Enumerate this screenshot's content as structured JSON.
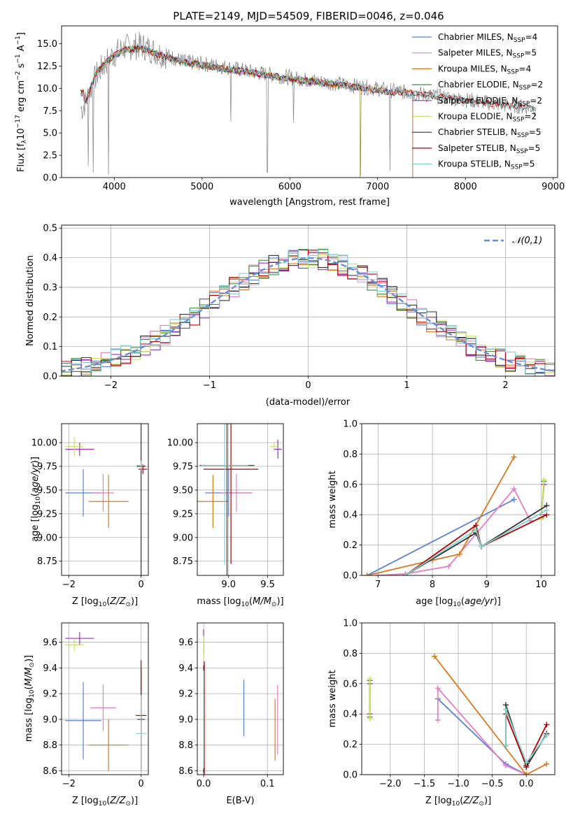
{
  "figure_title": "PLATE=2149, MJD=54509, FIBERID=0046, z=0.046",
  "model_colors": {
    "Chabrier MILES": "#5b7fd6",
    "Salpeter MILES": "#e57fc0",
    "Kroupa MILES": "#d9791f",
    "Chabrier ELODIE": "#3f8f3f",
    "Salpeter ELODIE": "#9b2fbf",
    "Kroupa ELODIE": "#c9e060",
    "Chabrier STELIB": "#333333",
    "Salpeter STELIB": "#b30000",
    "Kroupa STELIB": "#7fd3cf"
  },
  "chart_data": [
    {
      "id": "spectrum",
      "type": "line",
      "xlabel": "wavelength [Angstrom, rest frame]",
      "ylabel": "Flux [f_λ10^-17 erg cm^-2 s^-1 A^-1]",
      "xlim": [
        3400,
        9050
      ],
      "ylim": [
        0,
        17
      ],
      "xticks": [
        4000,
        5000,
        6000,
        7000,
        8000,
        9000
      ],
      "yticks": [
        0.0,
        2.5,
        5.0,
        7.5,
        10.0,
        12.5,
        15.0
      ],
      "legend_position": "upper-right",
      "legend": [
        {
          "base": "Chabrier MILES, N",
          "sub": "SSP",
          "tail": "=4"
        },
        {
          "base": "Salpeter MILES, N",
          "sub": "SSP",
          "tail": "=5"
        },
        {
          "base": "Kroupa MILES, N",
          "sub": "SSP",
          "tail": "=4"
        },
        {
          "base": "Chabrier ELODIE, N",
          "sub": "SSP",
          "tail": "=2"
        },
        {
          "base": "Salpeter ELODIE, N",
          "sub": "SSP",
          "tail": "=2"
        },
        {
          "base": "Kroupa ELODIE, N",
          "sub": "SSP",
          "tail": "=2"
        },
        {
          "base": "Chabrier STELIB, N",
          "sub": "SSP",
          "tail": "=5"
        },
        {
          "base": "Salpeter STELIB, N",
          "sub": "SSP",
          "tail": "=5"
        },
        {
          "base": "Kroupa STELIB, N",
          "sub": "SSP",
          "tail": "=5"
        }
      ],
      "data_continuum": [
        [
          3650,
          8.0
        ],
        [
          3800,
          11.5
        ],
        [
          3950,
          13.5
        ],
        [
          4100,
          14.5
        ],
        [
          4300,
          14.8
        ],
        [
          4500,
          14.0
        ],
        [
          4800,
          13.0
        ],
        [
          5200,
          12.5
        ],
        [
          5600,
          11.8
        ],
        [
          6000,
          11.2
        ],
        [
          6400,
          10.7
        ],
        [
          6800,
          10.2
        ],
        [
          7200,
          9.7
        ],
        [
          7600,
          9.2
        ],
        [
          8000,
          8.7
        ],
        [
          8400,
          8.2
        ],
        [
          8800,
          7.8
        ]
      ],
      "model_continuum": [
        [
          3650,
          8.0
        ],
        [
          3800,
          11.8
        ],
        [
          3950,
          13.3
        ],
        [
          4100,
          14.3
        ],
        [
          4300,
          14.5
        ],
        [
          4500,
          13.8
        ],
        [
          4800,
          12.9
        ],
        [
          5200,
          12.3
        ],
        [
          5600,
          11.7
        ],
        [
          6000,
          11.1
        ],
        [
          6400,
          10.6
        ],
        [
          6800,
          10.1
        ],
        [
          7200,
          9.5
        ]
      ],
      "model_cutoffs": {
        "MILES": 7400,
        "ELODIE": 6800,
        "STELIB": 8800
      }
    },
    {
      "id": "residual-hist",
      "type": "line",
      "xlabel": "(data-model)/error",
      "ylabel": "Normed distribution",
      "xlim": [
        -2.5,
        2.5
      ],
      "ylim": [
        0,
        0.51
      ],
      "xticks": [
        -2,
        -1,
        0,
        1,
        2
      ],
      "yticks": [
        0.0,
        0.1,
        0.2,
        0.3,
        0.4,
        0.5
      ],
      "bin_width": 0.1,
      "legend": "𝒩(0,1)",
      "legend_position": "upper-right",
      "reference_curve": "standard normal density"
    },
    {
      "id": "age-vs-Z",
      "type": "scatter",
      "xlabel": "Z [log10(Z/Z⊙)]",
      "ylabel": "age [log10(age/yr)]",
      "xlim": [
        -2.2,
        0.2
      ],
      "ylim": [
        8.6,
        10.2
      ],
      "xticks": [
        -2,
        0
      ],
      "yticks": [
        8.75,
        9.0,
        9.25,
        9.5,
        9.75,
        10.0
      ],
      "points": [
        {
          "model": "Chabrier MILES",
          "x": -1.6,
          "xerr": 0.5,
          "y": 9.47,
          "yerr": 0.25
        },
        {
          "model": "Salpeter MILES",
          "x": -1.05,
          "xerr": 0.3,
          "y": 9.47,
          "yerr": 0.2
        },
        {
          "model": "Kroupa MILES",
          "x": -0.9,
          "xerr": 0.55,
          "y": 9.38,
          "yerr": 0.28
        },
        {
          "model": "Salpeter ELODIE",
          "x": -1.7,
          "xerr": 0.4,
          "y": 9.93,
          "yerr": 0.07
        },
        {
          "model": "Kroupa ELODIE",
          "x": -1.85,
          "xerr": 0.25,
          "y": 9.96,
          "yerr": 0.1
        },
        {
          "model": "Chabrier STELIB",
          "x": 0.0,
          "xerr": 0.12,
          "y": 9.75,
          "yerr": 1.15
        },
        {
          "model": "Salpeter STELIB",
          "x": 0.05,
          "xerr": 0.12,
          "y": 9.72,
          "yerr": 0.05
        },
        {
          "model": "Kroupa STELIB",
          "x": 0.0,
          "xerr": 0.12,
          "y": 9.76,
          "yerr": 0.05
        }
      ]
    },
    {
      "id": "age-vs-mass",
      "type": "scatter",
      "xlabel": "mass [log10(M/M⊙)]",
      "ylabel": "",
      "xlim": [
        8.6,
        9.7
      ],
      "ylim": [
        8.6,
        10.2
      ],
      "xticks": [
        9.0,
        9.5
      ],
      "yticks": [
        8.75,
        9.0,
        9.25,
        9.5,
        9.75,
        10.0
      ],
      "points": [
        {
          "model": "Chabrier MILES",
          "x": 9.0,
          "xerr": 0.3,
          "y": 9.47,
          "yerr": 0.25
        },
        {
          "model": "Salpeter MILES",
          "x": 9.1,
          "xerr": 0.2,
          "y": 9.47,
          "yerr": 0.2
        },
        {
          "model": "Kroupa MILES",
          "x": 8.8,
          "xerr": 0.2,
          "y": 9.38,
          "yerr": 0.28
        },
        {
          "model": "Salpeter ELODIE",
          "x": 9.63,
          "xerr": 0.05,
          "y": 9.93,
          "yerr": 0.1
        },
        {
          "model": "Kroupa ELODIE",
          "x": 9.58,
          "xerr": 0.05,
          "y": 9.96,
          "yerr": 0.05
        },
        {
          "model": "Chabrier STELIB",
          "x": 8.98,
          "xerr": 0.35,
          "y": 9.76,
          "yerr": 1.3
        },
        {
          "model": "Salpeter STELIB",
          "x": 9.03,
          "xerr": 0.35,
          "y": 9.72,
          "yerr": 1.0
        },
        {
          "model": "Kroupa STELIB",
          "x": 8.95,
          "xerr": 0.3,
          "y": 9.76,
          "yerr": 1.05
        }
      ]
    },
    {
      "id": "weight-vs-age",
      "type": "line",
      "xlabel": "age  [log10(age/yr)]",
      "ylabel": "mass weight",
      "xlim": [
        6.7,
        10.25
      ],
      "ylim": [
        0,
        1.0
      ],
      "xticks": [
        7,
        8,
        9,
        10
      ],
      "yticks": [
        0.0,
        0.2,
        0.4,
        0.6,
        0.8,
        1.0
      ],
      "series": [
        {
          "model": "Chabrier MILES",
          "x": [
            6.8,
            9.5
          ],
          "y": [
            0.0,
            0.5
          ]
        },
        {
          "model": "Salpeter MILES",
          "x": [
            7.0,
            7.5,
            8.3,
            9.5,
            9.8
          ],
          "y": [
            0.0,
            0.01,
            0.06,
            0.57,
            0.36
          ]
        },
        {
          "model": "Kroupa MILES",
          "x": [
            6.8,
            8.0,
            8.5,
            9.5
          ],
          "y": [
            0.0,
            0.1,
            0.14,
            0.78
          ]
        },
        {
          "model": "Chabrier ELODIE",
          "x": [
            10.0,
            10.05
          ],
          "y": [
            0.38,
            0.62
          ]
        },
        {
          "model": "Salpeter ELODIE",
          "x": [
            10.0,
            10.05
          ],
          "y": [
            0.4,
            0.6
          ]
        },
        {
          "model": "Kroupa ELODIE",
          "x": [
            10.0,
            10.05
          ],
          "y": [
            0.37,
            0.63
          ]
        },
        {
          "model": "Chabrier STELIB",
          "x": [
            7.5,
            8.8,
            8.9,
            10.1
          ],
          "y": [
            0.0,
            0.28,
            0.19,
            0.46
          ]
        },
        {
          "model": "Salpeter STELIB",
          "x": [
            7.5,
            8.8,
            8.9,
            10.1
          ],
          "y": [
            0.0,
            0.33,
            0.19,
            0.4
          ]
        },
        {
          "model": "Kroupa STELIB",
          "x": [
            7.5,
            8.8,
            8.9,
            10.1
          ],
          "y": [
            0.0,
            0.3,
            0.19,
            0.43
          ]
        }
      ]
    },
    {
      "id": "mass-vs-Z",
      "type": "scatter",
      "xlabel": "Z [log10(Z/Z⊙)]",
      "ylabel": "mass [log10(M/M⊙)]",
      "xlim": [
        -2.2,
        0.2
      ],
      "ylim": [
        8.57,
        9.75
      ],
      "xticks": [
        -2,
        0
      ],
      "yticks": [
        8.6,
        8.8,
        9.0,
        9.2,
        9.4,
        9.6
      ],
      "points": [
        {
          "model": "Chabrier MILES",
          "x": -1.6,
          "xerr": 0.5,
          "y": 8.99,
          "yerr": 0.3
        },
        {
          "model": "Salpeter MILES",
          "x": -1.05,
          "xerr": 0.35,
          "y": 9.09,
          "yerr": 0.18
        },
        {
          "model": "Kroupa MILES",
          "x": -0.9,
          "xerr": 0.55,
          "y": 8.8,
          "yerr": 0.2
        },
        {
          "model": "Salpeter ELODIE",
          "x": -1.7,
          "xerr": 0.4,
          "y": 9.63,
          "yerr": 0.05
        },
        {
          "model": "Kroupa ELODIE",
          "x": -1.85,
          "xerr": 0.25,
          "y": 9.58,
          "yerr": 0.05
        },
        {
          "model": "Chabrier STELIB",
          "x": 0.0,
          "xerr": 0.1,
          "y": 9.0,
          "yerr": 0.4
        },
        {
          "model": "Salpeter STELIB",
          "x": 0.0,
          "xerr": 0.15,
          "y": 9.03,
          "yerr": 0.43
        },
        {
          "model": "Kroupa STELIB",
          "x": 0.0,
          "xerr": 0.15,
          "y": 8.89,
          "yerr": 0.3
        }
      ]
    },
    {
      "id": "mass-vs-EBV",
      "type": "scatter",
      "xlabel": "E(B-V)",
      "ylabel": "",
      "xlim": [
        -0.01,
        0.125
      ],
      "ylim": [
        8.57,
        9.75
      ],
      "xticks": [
        0.0,
        0.1
      ],
      "yticks": [
        8.6,
        8.8,
        9.0,
        9.2,
        9.4,
        9.6
      ],
      "points": [
        {
          "model": "Chabrier MILES",
          "x": 0.063,
          "xerr": 0,
          "y": 9.09,
          "yerr": 0.22
        },
        {
          "model": "Salpeter MILES",
          "x": 0.116,
          "xerr": 0,
          "y": 9.0,
          "yerr": 0.27
        },
        {
          "model": "Kroupa MILES",
          "x": 0.112,
          "xerr": 0,
          "y": 8.92,
          "yerr": 0.24
        },
        {
          "model": "Salpeter ELODIE",
          "x": 0.0,
          "xerr": 0,
          "y": 9.6,
          "yerr": 0.1
        },
        {
          "model": "Kroupa ELODIE",
          "x": 0.0,
          "xerr": 0,
          "y": 9.55,
          "yerr": 0.1
        },
        {
          "model": "Chabrier STELIB",
          "x": 0.0,
          "xerr": 0,
          "y": 9.0,
          "yerr": 0.42
        },
        {
          "model": "Salpeter STELIB",
          "x": 0.001,
          "xerr": 0,
          "y": 9.0,
          "yerr": 0.45
        },
        {
          "model": "Kroupa STELIB",
          "x": 0.0,
          "xerr": 0,
          "y": 9.0,
          "yerr": 0.38
        }
      ]
    },
    {
      "id": "weight-vs-Z",
      "type": "line",
      "xlabel": "Z [log10(Z/Z⊙)]",
      "ylabel": "mass weight",
      "xlim": [
        -2.42,
        0.42
      ],
      "ylim": [
        0,
        1.0
      ],
      "xticks": [
        -2.0,
        -1.5,
        -1.0,
        -0.5,
        0.0
      ],
      "yticks": [
        0.0,
        0.2,
        0.4,
        0.6,
        0.8,
        1.0
      ],
      "series": [
        {
          "model": "Chabrier MILES",
          "x": [
            -1.3,
            -0.3,
            0.0
          ],
          "y": [
            0.5,
            0.07,
            0.0
          ]
        },
        {
          "model": "Salpeter MILES",
          "x": [
            -1.3,
            -1.3,
            -0.3,
            0.0
          ],
          "y": [
            0.36,
            0.57,
            0.06,
            0.0
          ]
        },
        {
          "model": "Kroupa MILES",
          "x": [
            -1.35,
            0.0,
            0.3
          ],
          "y": [
            0.78,
            0.0,
            0.07
          ]
        },
        {
          "model": "Chabrier ELODIE",
          "x": [
            -2.3,
            -2.3
          ],
          "y": [
            0.38,
            0.62
          ]
        },
        {
          "model": "Salpeter ELODIE",
          "x": [
            -2.3,
            -2.3
          ],
          "y": [
            0.4,
            0.6
          ]
        },
        {
          "model": "Kroupa ELODIE",
          "x": [
            -2.3,
            -2.3
          ],
          "y": [
            0.37,
            0.63
          ]
        },
        {
          "model": "Chabrier STELIB",
          "x": [
            -0.3,
            -0.3,
            0.0,
            0.3
          ],
          "y": [
            0.19,
            0.46,
            0.05,
            0.27
          ]
        },
        {
          "model": "Salpeter STELIB",
          "x": [
            -0.3,
            -0.3,
            0.0,
            0.3
          ],
          "y": [
            0.19,
            0.4,
            0.06,
            0.33
          ]
        },
        {
          "model": "Kroupa STELIB",
          "x": [
            -0.3,
            -0.3,
            0.0,
            0.3
          ],
          "y": [
            0.19,
            0.43,
            0.08,
            0.26
          ]
        }
      ]
    }
  ]
}
